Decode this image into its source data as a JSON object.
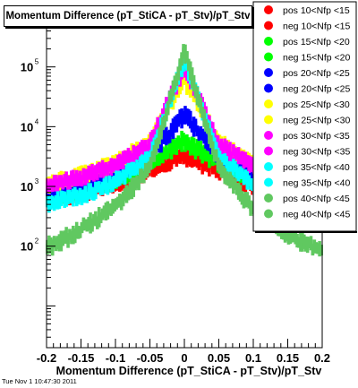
{
  "title": "Momentum Difference (pT_StiCA - pT_Stv)/pT_Stv",
  "datestamp": "Tue Nov  1 10:47:30 2011",
  "chart_data": {
    "type": "scatter",
    "title": "Momentum Difference (pT_StiCA - pT_Stv)/pT_Stv",
    "xlabel": "Momentum Difference (pT_StiCA - pT_Stv)/pT_Stv",
    "ylabel": "",
    "xlim": [
      -0.2,
      0.2
    ],
    "ylim": [
      2,
      1000000
    ],
    "yscale": "log",
    "x_ticks": [
      -0.2,
      -0.15,
      -0.1,
      -0.05,
      0,
      0.05,
      0.1,
      0.15,
      0.2
    ],
    "x_tick_labels": [
      "-0.2",
      "-0.15",
      "-0.1",
      "-0.05",
      "0",
      "0.05",
      "0.1",
      "0.15",
      "0.2"
    ],
    "y_ticks": [
      100,
      1000,
      10000,
      100000
    ],
    "y_tick_labels": [
      {
        "base": "10",
        "exp": "2"
      },
      {
        "base": "10",
        "exp": "3"
      },
      {
        "base": "10",
        "exp": "4"
      },
      {
        "base": "10",
        "exp": "5"
      }
    ],
    "legend_position": "right",
    "x": [
      -0.2,
      -0.15,
      -0.1,
      -0.05,
      0,
      0.05,
      0.1,
      0.15,
      0.2
    ],
    "series": [
      {
        "name": "pos 10<Nfp <15",
        "color": "#ff0000",
        "values": [
          600,
          750,
          1100,
          1800,
          3200,
          1800,
          1000,
          650,
          480
        ]
      },
      {
        "name": "neg 10<Nfp <15",
        "color": "#ff0000",
        "values": [
          650,
          800,
          1150,
          1900,
          3500,
          1900,
          1050,
          700,
          520
        ]
      },
      {
        "name": "pos 15<Nfp <20",
        "color": "#00ff00",
        "values": [
          650,
          850,
          1300,
          2400,
          5500,
          2400,
          1250,
          800,
          600
        ]
      },
      {
        "name": "neg 15<Nfp <20",
        "color": "#00ff00",
        "values": [
          700,
          900,
          1350,
          2600,
          6500,
          2600,
          1300,
          850,
          640
        ]
      },
      {
        "name": "pos 20<Nfp <25",
        "color": "#0000ff",
        "values": [
          800,
          1000,
          1500,
          3300,
          15000,
          3300,
          1450,
          950,
          700
        ]
      },
      {
        "name": "neg 20<Nfp <25",
        "color": "#0000ff",
        "values": [
          850,
          1050,
          1600,
          3500,
          17000,
          3500,
          1500,
          1000,
          730
        ]
      },
      {
        "name": "pos 25<Nfp <30",
        "color": "#ffff00",
        "values": [
          1100,
          1500,
          2400,
          5500,
          60000,
          5500,
          2300,
          1400,
          1000
        ]
      },
      {
        "name": "neg 25<Nfp <30",
        "color": "#ffff00",
        "values": [
          1100,
          1550,
          2500,
          5800,
          70000,
          5800,
          2400,
          1450,
          1050
        ]
      },
      {
        "name": "pos 30<Nfp <35",
        "color": "#ff00ff",
        "values": [
          1000,
          1400,
          2300,
          5000,
          100000,
          5000,
          2100,
          1300,
          950
        ]
      },
      {
        "name": "neg 30<Nfp <35",
        "color": "#ff00ff",
        "values": [
          1000,
          1450,
          2350,
          5200,
          110000,
          5200,
          2200,
          1350,
          980
        ]
      },
      {
        "name": "pos 35<Nfp <40",
        "color": "#00ffff",
        "values": [
          500,
          700,
          1200,
          3000,
          130000,
          3000,
          1100,
          620,
          420
        ]
      },
      {
        "name": "neg 35<Nfp <40",
        "color": "#00ffff",
        "values": [
          520,
          720,
          1250,
          3100,
          140000,
          3100,
          1150,
          640,
          440
        ]
      },
      {
        "name": "pos 40<Nfp <45",
        "color": "#60c860",
        "values": [
          90,
          180,
          450,
          2000,
          180000,
          2000,
          400,
          150,
          80
        ]
      },
      {
        "name": "neg 40<Nfp <45",
        "color": "#60c860",
        "values": [
          100,
          200,
          480,
          2100,
          190000,
          2100,
          430,
          160,
          85
        ]
      }
    ]
  }
}
